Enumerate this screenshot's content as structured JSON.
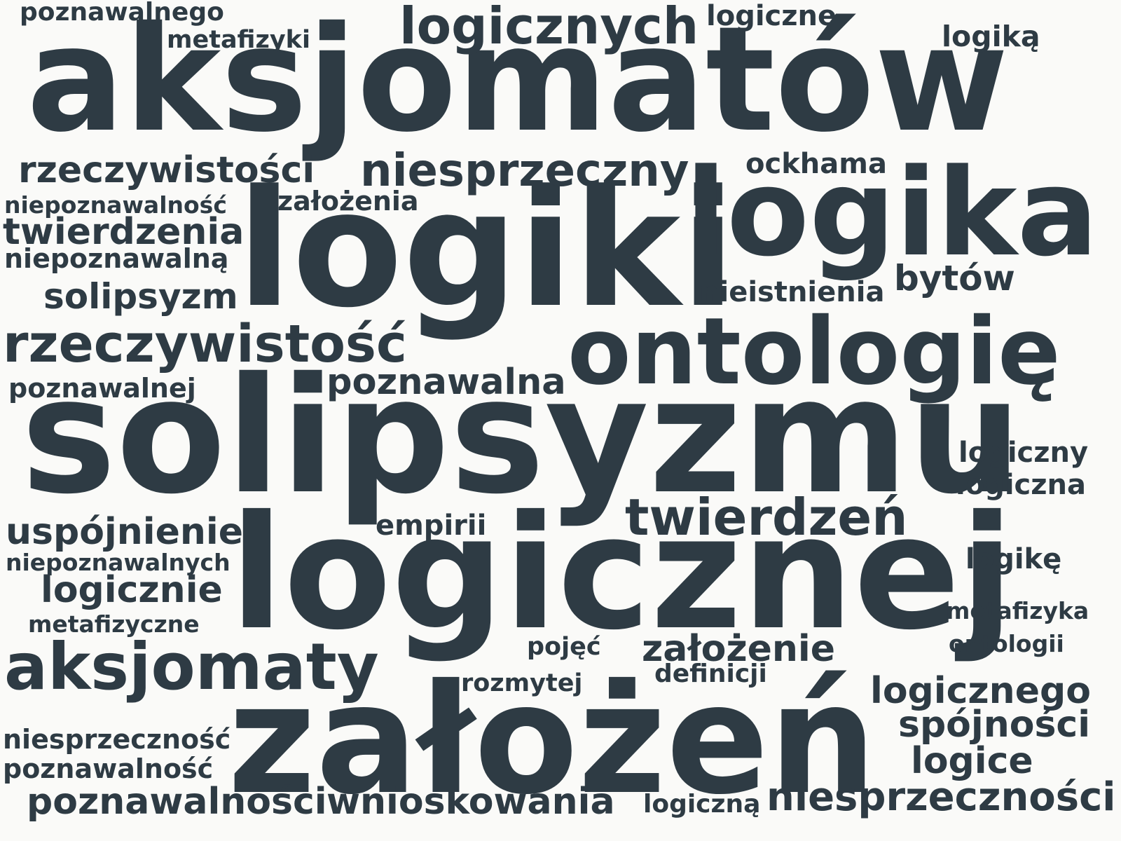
{
  "text_color": "#2e3b44",
  "background_color": "#fafaf8",
  "words": [
    {
      "key": "aksjomatow",
      "text": "aksjomatów"
    },
    {
      "key": "logiki",
      "text": "logiki"
    },
    {
      "key": "logika",
      "text": "logika"
    },
    {
      "key": "ontologie",
      "text": "ontologię"
    },
    {
      "key": "solipsyzmu",
      "text": "solipsyzmu"
    },
    {
      "key": "logicznej",
      "text": "logicznej"
    },
    {
      "key": "zalozen",
      "text": "założeń"
    },
    {
      "key": "aksjomaty",
      "text": "aksjomaty"
    },
    {
      "key": "logicznych",
      "text": "logicznych"
    },
    {
      "key": "niesprzeczny",
      "text": "niesprzeczny"
    },
    {
      "key": "rzeczywistosc",
      "text": "rzeczywistość"
    },
    {
      "key": "twierdzen",
      "text": "twierdzeń"
    },
    {
      "key": "rzeczywistosci",
      "text": "rzeczywistości"
    },
    {
      "key": "twierdzenia",
      "text": "twierdzenia"
    },
    {
      "key": "solipsyzm",
      "text": "solipsyzm"
    },
    {
      "key": "poznawalna",
      "text": "poznawalna"
    },
    {
      "key": "uspojnienie",
      "text": "uspójnienie"
    },
    {
      "key": "logicznie",
      "text": "logicznie"
    },
    {
      "key": "zalozenie",
      "text": "założenie"
    },
    {
      "key": "logicznego",
      "text": "logicznego"
    },
    {
      "key": "spojnosci",
      "text": "spójności"
    },
    {
      "key": "logice",
      "text": "logice"
    },
    {
      "key": "poznawalnosci",
      "text": "poznawalności"
    },
    {
      "key": "wnioskowania",
      "text": "wnioskowania"
    },
    {
      "key": "niesprzecznosci",
      "text": "niesprzeczności"
    },
    {
      "key": "bytow",
      "text": "bytów"
    },
    {
      "key": "logika2",
      "text": "logiką"
    },
    {
      "key": "logiczne",
      "text": "logiczne"
    },
    {
      "key": "poznawalnego",
      "text": "poznawalnego"
    },
    {
      "key": "metafizyki",
      "text": "metafizyki"
    },
    {
      "key": "ockhama",
      "text": "ockhama"
    },
    {
      "key": "zalozenia",
      "text": "założenia"
    },
    {
      "key": "niepoznawalnosc",
      "text": "niepoznawalność"
    },
    {
      "key": "niepoznawalna",
      "text": "niepoznawalną"
    },
    {
      "key": "nieistnienia",
      "text": "nieistnienia"
    },
    {
      "key": "poznawalnej",
      "text": "poznawalnej"
    },
    {
      "key": "logiczny",
      "text": "logiczny"
    },
    {
      "key": "logiczna",
      "text": "logiczna"
    },
    {
      "key": "empirii",
      "text": "empirii"
    },
    {
      "key": "niepoznawalnych",
      "text": "niepoznawalnych"
    },
    {
      "key": "logike",
      "text": "logikę"
    },
    {
      "key": "metafizyczne",
      "text": "metafizyczne"
    },
    {
      "key": "metafizyka",
      "text": "metafizyka"
    },
    {
      "key": "pojec",
      "text": "pojęć"
    },
    {
      "key": "ontologii",
      "text": "ontologii"
    },
    {
      "key": "definicji",
      "text": "definicji"
    },
    {
      "key": "rozmytej",
      "text": "rozmytej"
    },
    {
      "key": "niesprzecznosc",
      "text": "niesprzeczność"
    },
    {
      "key": "poznawalnosc",
      "text": "poznawalność"
    },
    {
      "key": "logiczna2",
      "text": "logiczną"
    }
  ]
}
